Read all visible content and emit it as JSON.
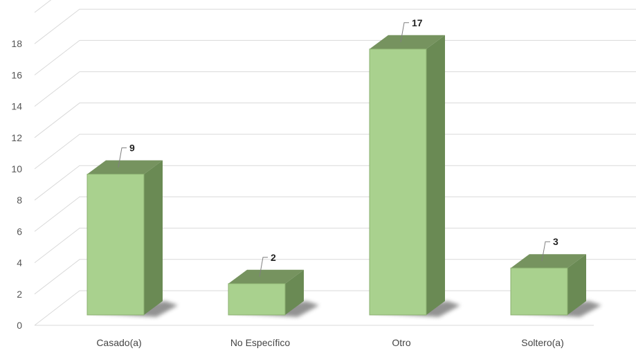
{
  "chart_data": {
    "type": "bar",
    "style": "3d-column",
    "categories": [
      "Casado(a)",
      "No Específico",
      "Otro",
      "Soltero(a)"
    ],
    "values": [
      9,
      2,
      17,
      3
    ],
    "ylim": [
      0,
      20
    ],
    "yticks": [
      0,
      2,
      4,
      6,
      8,
      10,
      12,
      14,
      16,
      18
    ],
    "grid": true,
    "data_labels": true,
    "legend": "none",
    "colors": {
      "bar_front": "#a9d18e",
      "bar_top": "#76935f",
      "bar_side": "#6a8a54",
      "bar_edge": "#8bb070",
      "grid": "#d9d9d9"
    }
  }
}
